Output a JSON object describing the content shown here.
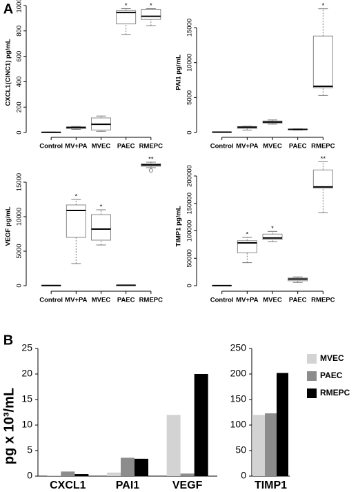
{
  "chart_data": [
    {
      "type": "box",
      "panel": "A",
      "ylabel": "CXCL1(CINC1) pg/mL",
      "categories": [
        "Control",
        "MV+PA",
        "MVEC",
        "PAEC",
        "RMEPC"
      ],
      "boxes": [
        {
          "low": 0,
          "q1": 1,
          "median": 2,
          "q3": 3,
          "high": 4
        },
        {
          "low": 25,
          "q1": 32,
          "median": 40,
          "q3": 45,
          "high": 48
        },
        {
          "low": 10,
          "q1": 20,
          "median": 65,
          "q3": 115,
          "high": 130
        },
        {
          "low": 770,
          "q1": 855,
          "median": 945,
          "q3": 960,
          "high": 975
        },
        {
          "low": 840,
          "q1": 890,
          "median": 915,
          "q3": 970,
          "high": 975
        }
      ],
      "annotations": [
        {
          "x": "PAEC",
          "text": "*"
        },
        {
          "x": "RMEPC",
          "text": "*"
        }
      ],
      "ylim": [
        -70,
        1016
      ],
      "yticks": [
        0,
        200,
        400,
        600,
        800,
        1000
      ]
    },
    {
      "type": "box",
      "ylabel": "PAI1 pg/mL",
      "categories": [
        "Control",
        "MV+PA",
        "MVEC",
        "PAEC",
        "RMEPC"
      ],
      "boxes": [
        {
          "low": 40,
          "q1": 45,
          "median": 50,
          "q3": 55,
          "high": 60
        },
        {
          "low": 350,
          "q1": 600,
          "median": 750,
          "q3": 850,
          "high": 900
        },
        {
          "low": 1200,
          "q1": 1350,
          "median": 1500,
          "q3": 1650,
          "high": 1800
        },
        {
          "low": 350,
          "q1": 420,
          "median": 450,
          "q3": 480,
          "high": 520
        },
        {
          "low": 5300,
          "q1": 6400,
          "median": 6600,
          "q3": 13800,
          "high": 17700
        }
      ],
      "annotations": [
        {
          "x": "RMEPC",
          "text": "*"
        }
      ],
      "ylim": [
        -1280,
        18460
      ],
      "yticks": [
        0,
        5000,
        10000,
        15000
      ]
    },
    {
      "type": "box",
      "ylabel": "VEGF pg/mL",
      "categories": [
        "Control",
        "MV+PA",
        "MVEC",
        "PAEC",
        "RMEPC"
      ],
      "boxes": [
        {
          "low": 0,
          "q1": 10,
          "median": 20,
          "q3": 30,
          "high": 40
        },
        {
          "low": 3200,
          "q1": 7000,
          "median": 10900,
          "q3": 11700,
          "high": 12500
        },
        {
          "low": 5900,
          "q1": 6600,
          "median": 8200,
          "q3": 10300,
          "high": 11000
        },
        {
          "low": 40,
          "q1": 50,
          "median": 60,
          "q3": 70,
          "high": 80
        },
        {
          "low": 17100,
          "q1": 17300,
          "median": 17500,
          "q3": 17700,
          "high": 17900,
          "outliers": [
            16700
          ]
        }
      ],
      "annotations": [
        {
          "x": "MV+PA",
          "text": "*"
        },
        {
          "x": "MVEC",
          "text": "*"
        },
        {
          "x": "RMEPC",
          "text": "**"
        }
      ],
      "ylim": [
        -1400,
        18600
      ],
      "yticks": [
        0,
        5000,
        10000,
        15000
      ]
    },
    {
      "type": "box",
      "ylabel": "TIMP1 pg/mL",
      "categories": [
        "Control",
        "MV+PA",
        "MVEC",
        "PAEC",
        "RMEPC"
      ],
      "boxes": [
        {
          "low": 0,
          "q1": 100,
          "median": 200,
          "q3": 300,
          "high": 400
        },
        {
          "low": 42000,
          "q1": 60000,
          "median": 78000,
          "q3": 82000,
          "high": 88000
        },
        {
          "low": 80000,
          "q1": 84000,
          "median": 87000,
          "q3": 94000,
          "high": 99000
        },
        {
          "low": 6000,
          "q1": 9000,
          "median": 12000,
          "q3": 14000,
          "high": 16000
        },
        {
          "low": 133000,
          "q1": 178000,
          "median": 180000,
          "q3": 211000,
          "high": 226000
        }
      ],
      "annotations": [
        {
          "x": "MV+PA",
          "text": "*"
        },
        {
          "x": "MVEC",
          "text": "*"
        },
        {
          "x": "RMEPC",
          "text": "**"
        }
      ],
      "ylim": [
        -17600,
        234000
      ],
      "yticks": [
        0,
        50000,
        100000,
        150000,
        200000
      ]
    },
    {
      "type": "bar",
      "panel": "B",
      "ylabel": "pg x 10³/mL",
      "categories": [
        "CXCL1",
        "PAI1",
        "VEGF"
      ],
      "series": [
        {
          "name": "MVEC",
          "color": "#d3d3d3",
          "values": [
            0.05,
            0.7,
            12
          ]
        },
        {
          "name": "PAEC",
          "color": "#8c8c8c",
          "values": [
            0.9,
            3.6,
            0.5
          ]
        },
        {
          "name": "RMEPC",
          "color": "#000000",
          "values": [
            0.4,
            3.4,
            20
          ]
        }
      ],
      "ylim": [
        0,
        25
      ],
      "yticks": [
        0,
        5,
        10,
        15,
        20,
        25
      ]
    },
    {
      "type": "bar",
      "categories": [
        "TIMP1"
      ],
      "legend": "right",
      "series": [
        {
          "name": "MVEC",
          "color": "#d3d3d3",
          "values": [
            120
          ]
        },
        {
          "name": "PAEC",
          "color": "#8c8c8c",
          "values": [
            123
          ]
        },
        {
          "name": "RMEPC",
          "color": "#000000",
          "values": [
            202
          ]
        }
      ],
      "ylim": [
        0,
        250
      ],
      "yticks": [
        0,
        50,
        100,
        150,
        200,
        250
      ]
    }
  ]
}
